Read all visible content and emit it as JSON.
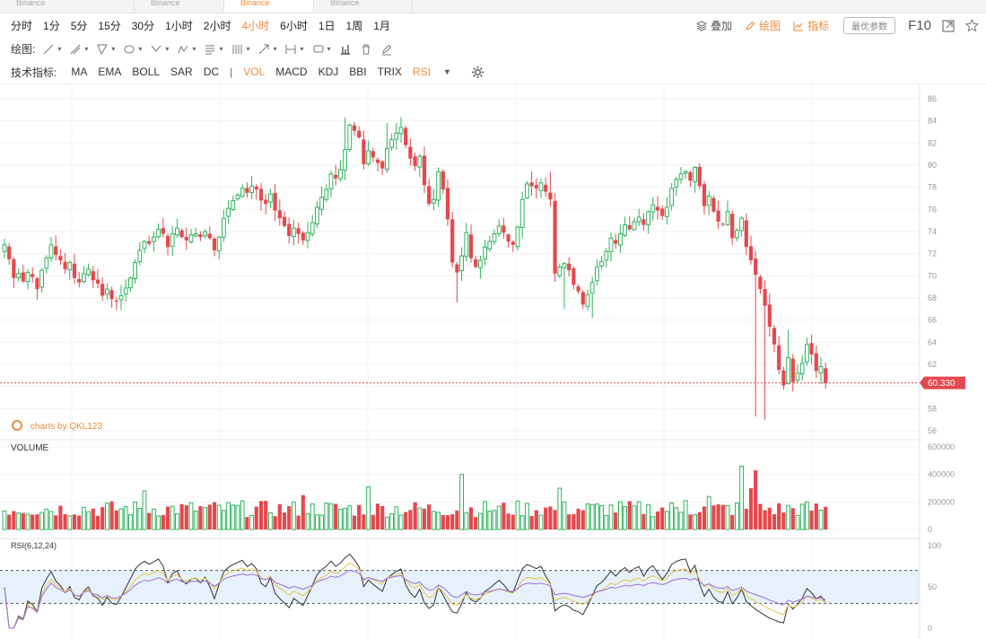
{
  "tabs": [
    {
      "label": "Binance",
      "active": false
    },
    {
      "label": "Binance",
      "active": false
    },
    {
      "label": "Binance",
      "active": true
    },
    {
      "label": "Binance",
      "active": false
    }
  ],
  "periods": [
    {
      "label": "分时",
      "active": false
    },
    {
      "label": "1分",
      "active": false
    },
    {
      "label": "5分",
      "active": false
    },
    {
      "label": "15分",
      "active": false
    },
    {
      "label": "30分",
      "active": false
    },
    {
      "label": "1小时",
      "active": false
    },
    {
      "label": "2小时",
      "active": false
    },
    {
      "label": "4小时",
      "active": true
    },
    {
      "label": "6小时",
      "active": false
    },
    {
      "label": "1日",
      "active": false
    },
    {
      "label": "1周",
      "active": false
    },
    {
      "label": "1月",
      "active": false
    }
  ],
  "tools": {
    "overlay_label": "叠加",
    "draw_label": "绘图",
    "indicator_label": "指标",
    "best_params_label": "最优参数",
    "f10_label": "F10"
  },
  "drawing": {
    "label": "绘图:",
    "tools": [
      "line-tool-icon",
      "ray-tool-icon",
      "channel-tool-icon",
      "shape-tool-icon",
      "fib-tool-icon",
      "pattern-tool-icon",
      "text-tool-icon",
      "grid-tool-icon",
      "arrow-tool-icon",
      "range-tool-icon",
      "note-tool-icon",
      "bars-tool-icon",
      "trash-icon",
      "pen-icon"
    ]
  },
  "indicators": {
    "label": "技术指标:",
    "main": [
      {
        "label": "MA",
        "active": false
      },
      {
        "label": "EMA",
        "active": false
      },
      {
        "label": "BOLL",
        "active": false
      },
      {
        "label": "SAR",
        "active": false
      },
      {
        "label": "DC",
        "active": false
      }
    ],
    "sub": [
      {
        "label": "VOL",
        "active": true
      },
      {
        "label": "MACD",
        "active": false
      },
      {
        "label": "KDJ",
        "active": false
      },
      {
        "label": "BBI",
        "active": false
      },
      {
        "label": "TRIX",
        "active": false
      },
      {
        "label": "RSI",
        "active": true
      }
    ]
  },
  "watermark": "charts by QKL123",
  "last_price": "60.330",
  "colors": {
    "up": "#2fb35d",
    "down": "#e5484d",
    "accent": "#f08a3c",
    "rsi6": "#333333",
    "rsi12": "#e8c547",
    "rsi24": "#9b6fd6"
  },
  "chart_data": [
    {
      "type": "candlestick",
      "name": "price",
      "ylim": [
        56,
        86
      ],
      "ticks": [
        "86",
        "84",
        "82",
        "80",
        "78",
        "76",
        "74",
        "72",
        "70",
        "68",
        "66",
        "64",
        "62",
        "60",
        "58",
        "56"
      ],
      "closes": [
        72.8,
        71.5,
        69.8,
        70.2,
        69.5,
        70.3,
        69.9,
        68.8,
        70.5,
        71.6,
        72.8,
        71.9,
        71.4,
        70.6,
        71.2,
        69.8,
        69.4,
        70.2,
        70.6,
        69.6,
        69.3,
        68.2,
        68.8,
        67.9,
        67.7,
        68.2,
        68.9,
        69.8,
        71.2,
        72.3,
        73.1,
        72.9,
        73.5,
        74.2,
        73.8,
        72.6,
        73.8,
        74.3,
        73.5,
        73.2,
        73.7,
        73.8,
        73.5,
        74.0,
        73.4,
        72.3,
        73.5,
        75.2,
        76.1,
        76.8,
        77.3,
        77.9,
        77.5,
        78.1,
        77.8,
        76.8,
        76.5,
        77.4,
        75.9,
        75.2,
        74.5,
        73.6,
        74.3,
        73.8,
        73.2,
        73.9,
        74.8,
        76.2,
        77.1,
        77.8,
        79.2,
        78.8,
        79.6,
        81.4,
        83.6,
        83.1,
        82.5,
        80.1,
        81.3,
        80.7,
        80.2,
        79.7,
        81.5,
        82.3,
        82.9,
        83.4,
        81.8,
        80.6,
        79.9,
        80.8,
        78.2,
        76.5,
        76.9,
        79.4,
        77.8,
        75.1,
        71.2,
        70.3,
        71.8,
        73.9,
        71.6,
        70.8,
        71.4,
        72.6,
        73.1,
        73.8,
        74.5,
        73.9,
        73.1,
        72.8,
        74.4,
        76.9,
        78.3,
        78.1,
        77.9,
        78.4,
        77.6,
        76.9,
        70.2,
        70.8,
        71.1,
        70.5,
        69.2,
        68.6,
        67.4,
        68.3,
        69.4,
        70.8,
        71.3,
        72.2,
        73.4,
        72.9,
        73.8,
        74.6,
        74.2,
        74.9,
        75.3,
        74.6,
        75.8,
        76.4,
        75.9,
        75.4,
        76.2,
        77.9,
        78.7,
        79.2,
        79.4,
        78.6,
        79.8,
        78.1,
        76.3,
        77.2,
        75.8,
        74.9,
        74.7,
        75.8,
        73.4,
        74.1,
        75.2,
        72.6,
        71.4,
        70.1,
        68.8,
        67.3,
        65.4,
        63.8,
        61.5,
        60.1,
        62.6,
        60.4,
        61.2,
        62.1,
        63.8,
        62.9,
        61.4,
        61.8,
        60.3
      ]
    },
    {
      "type": "bar",
      "name": "VOLUME",
      "ylim": [
        0,
        600000
      ],
      "ticks": [
        "600000",
        "400000",
        "200000",
        "0"
      ]
    },
    {
      "type": "line",
      "name": "RSI(6,12,24)",
      "ylim": [
        0,
        100
      ],
      "ticks": [
        "100",
        "50",
        "0"
      ],
      "bands": [
        70,
        30
      ]
    }
  ]
}
